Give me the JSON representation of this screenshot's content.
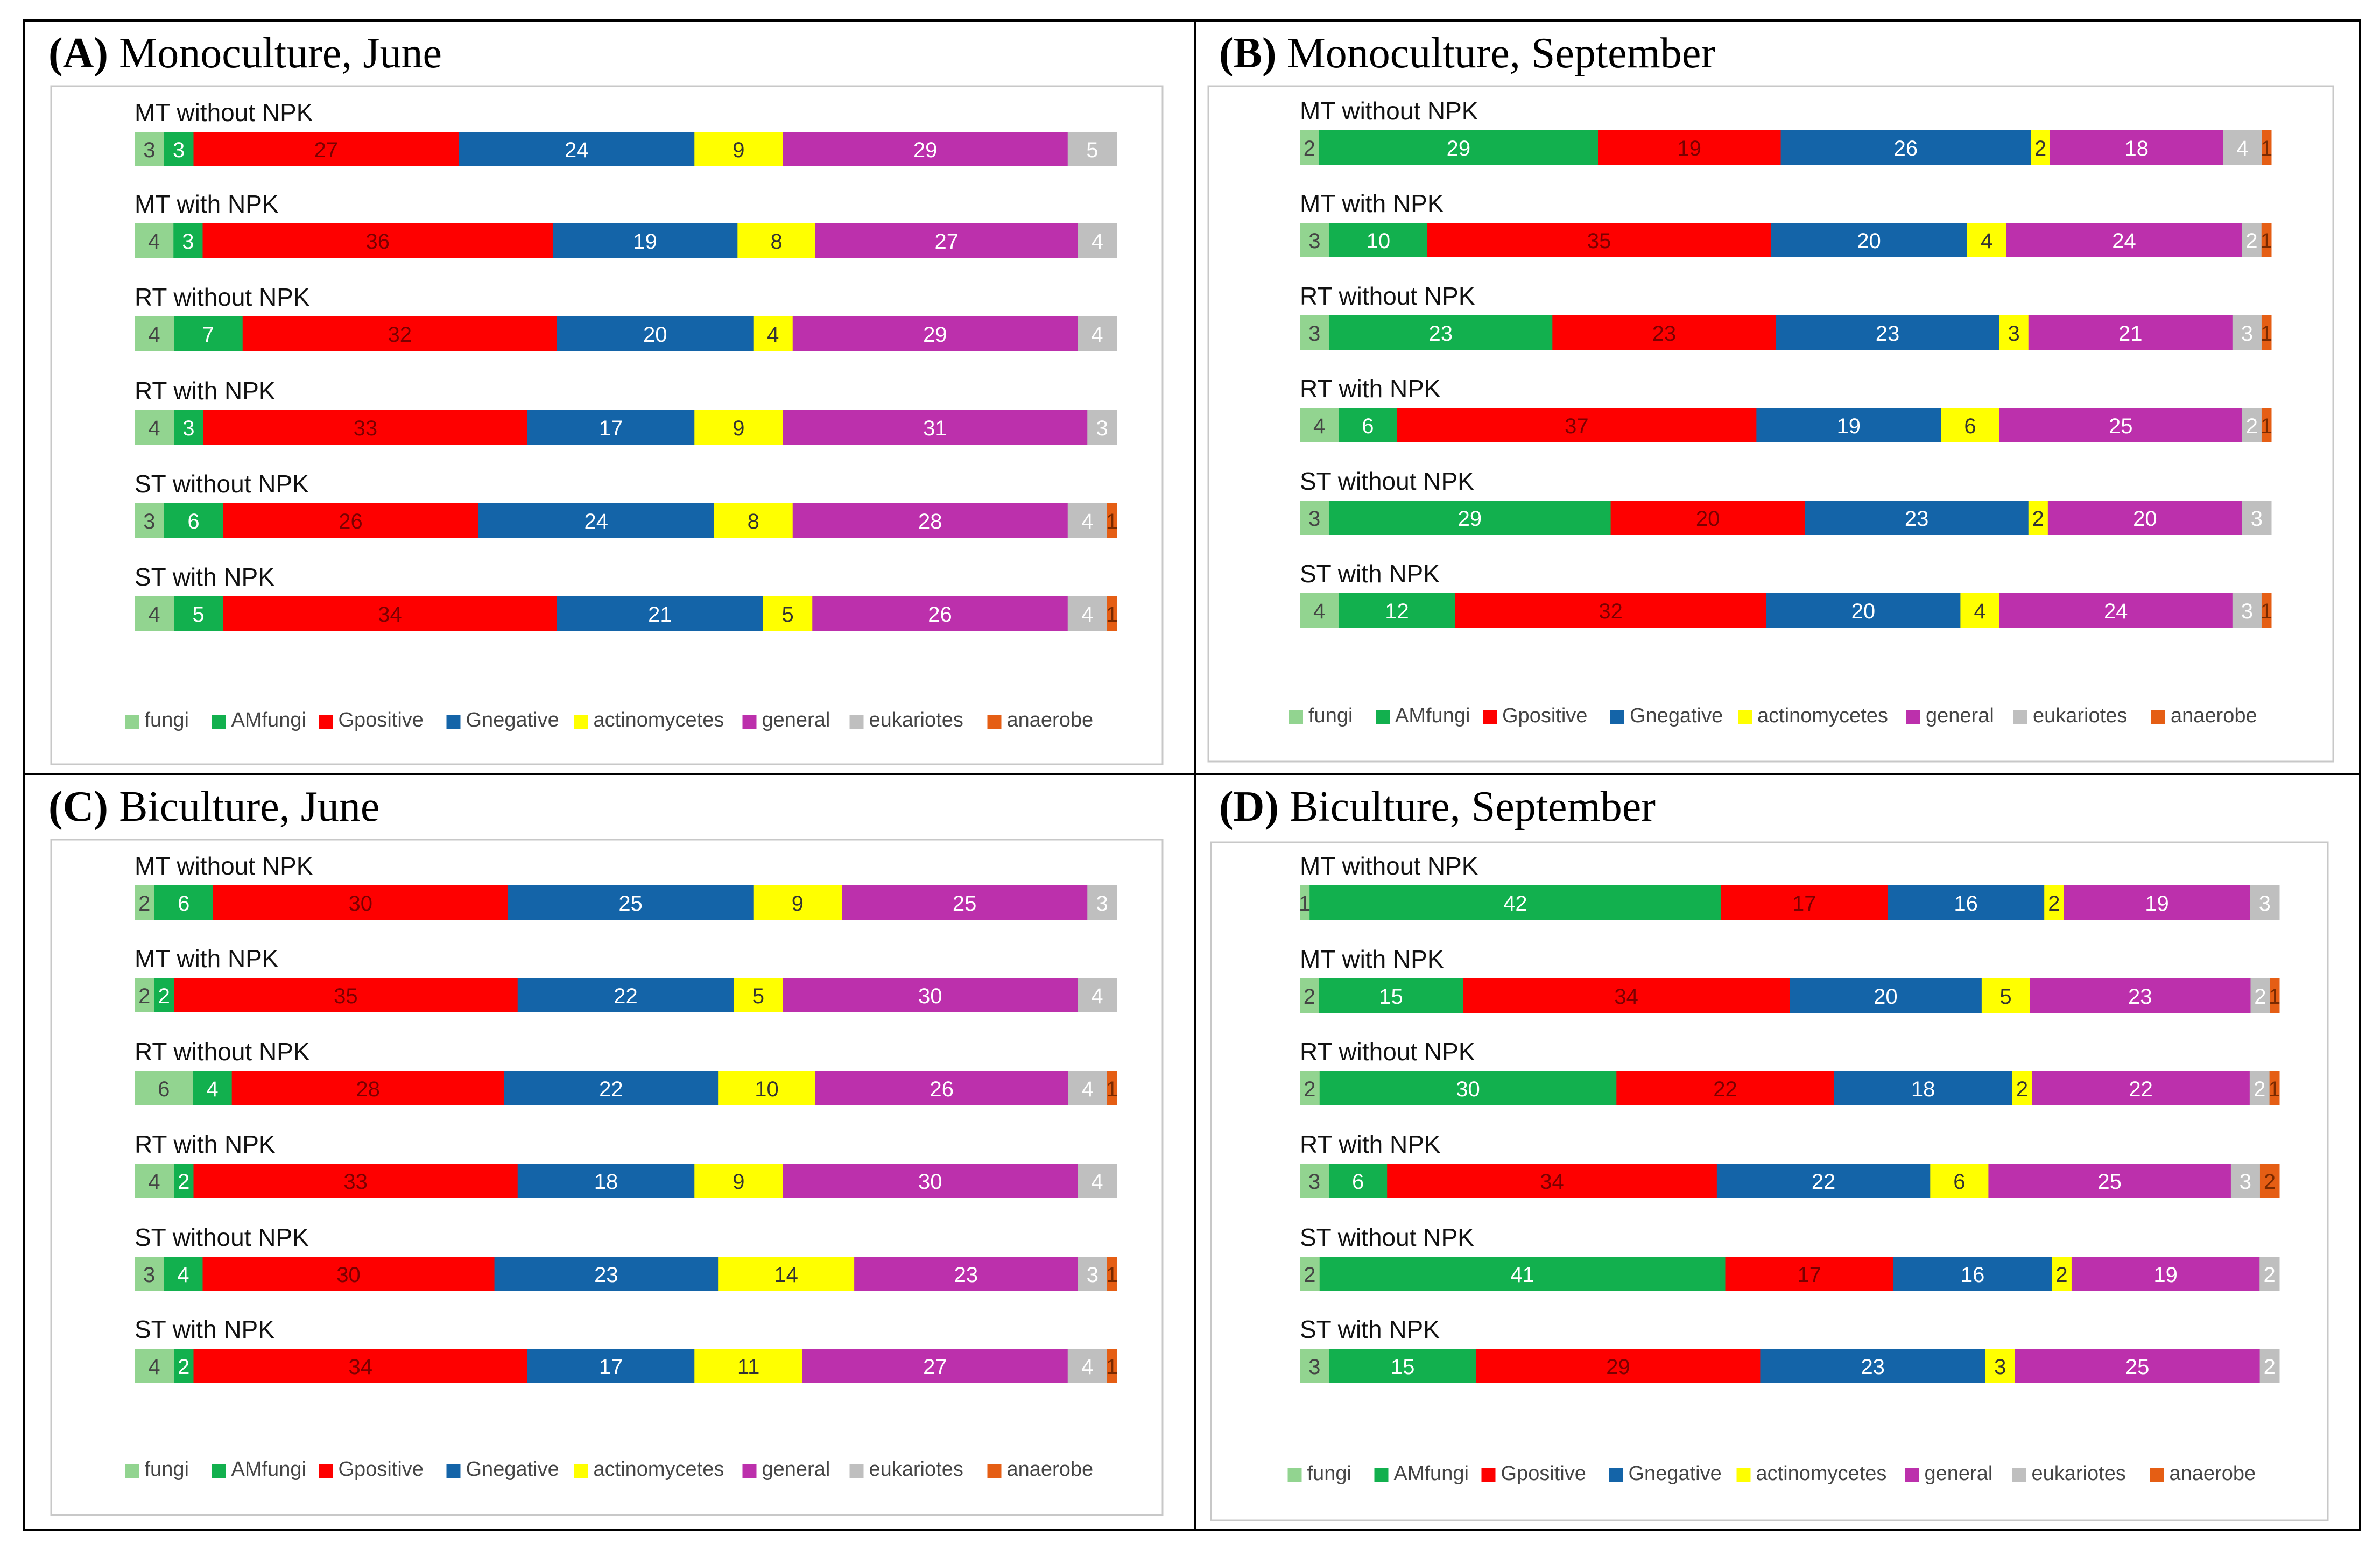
{
  "colors": {
    "fungi": "#92d490",
    "AMfungi": "#12b04e",
    "Gpositive": "#fe0000",
    "Gnegative": "#1464a8",
    "actinomycetes": "#ffff00",
    "general": "#bc30ac",
    "eukariotes": "#bfbfbf",
    "anaerobe": "#e55e14"
  },
  "label_colors": {
    "fungi": "#444444",
    "AMfungi": "#ffffff",
    "Gpositive": "#7a0000",
    "Gnegative": "#ffffff",
    "actinomycetes": "#333333",
    "general": "#ffffff",
    "eukariotes": "#ffffff",
    "anaerobe": "#7a2a00"
  },
  "chart_data": [
    {
      "type": "bar",
      "orientation": "horizontal",
      "stacked": true,
      "panel_letter": "(A)",
      "title": "Monoculture, June",
      "legend_position": "bottom",
      "categories": [
        "MT  without NPK",
        "MT  with NPK",
        "RT  without NPK",
        "RT  with NPK",
        "ST  without NPK",
        "ST  with NPK"
      ],
      "series": [
        {
          "name": "fungi",
          "values": [
            3,
            4,
            4,
            4,
            3,
            4
          ]
        },
        {
          "name": "AMfungi",
          "values": [
            3,
            3,
            7,
            3,
            6,
            5
          ]
        },
        {
          "name": "Gpositive",
          "values": [
            27,
            36,
            32,
            33,
            26,
            34
          ]
        },
        {
          "name": "Gnegative",
          "values": [
            24,
            19,
            20,
            17,
            24,
            21
          ]
        },
        {
          "name": "actinomycetes",
          "values": [
            9,
            8,
            4,
            9,
            8,
            5
          ]
        },
        {
          "name": "general",
          "values": [
            29,
            27,
            29,
            31,
            28,
            26
          ]
        },
        {
          "name": "eukariotes",
          "values": [
            5,
            4,
            4,
            3,
            4,
            4
          ]
        },
        {
          "name": "anaerobe",
          "values": [
            0,
            0,
            0,
            0,
            1,
            1
          ]
        }
      ]
    },
    {
      "type": "bar",
      "orientation": "horizontal",
      "stacked": true,
      "panel_letter": "(B)",
      "title": "Monoculture, September",
      "legend_position": "bottom",
      "categories": [
        "MT  without NPK",
        "MT  with NPK",
        "RT  without NPK",
        "RT  with NPK",
        "ST  without NPK",
        "ST  with NPK"
      ],
      "series": [
        {
          "name": "fungi",
          "values": [
            2,
            3,
            3,
            4,
            3,
            4
          ]
        },
        {
          "name": "AMfungi",
          "values": [
            29,
            10,
            23,
            6,
            29,
            12
          ]
        },
        {
          "name": "Gpositive",
          "values": [
            19,
            35,
            23,
            37,
            20,
            32
          ]
        },
        {
          "name": "Gnegative",
          "values": [
            26,
            20,
            23,
            19,
            23,
            20
          ]
        },
        {
          "name": "actinomycetes",
          "values": [
            2,
            4,
            3,
            6,
            2,
            4
          ]
        },
        {
          "name": "general",
          "values": [
            18,
            24,
            21,
            25,
            20,
            24
          ]
        },
        {
          "name": "eukariotes",
          "values": [
            4,
            2,
            3,
            2,
            3,
            3
          ]
        },
        {
          "name": "anaerobe",
          "values": [
            1,
            1,
            1,
            1,
            0,
            1
          ]
        }
      ]
    },
    {
      "type": "bar",
      "orientation": "horizontal",
      "stacked": true,
      "panel_letter": "(C)",
      "title": "Biculture, June",
      "legend_position": "bottom",
      "categories": [
        "MT  without NPK",
        "MT  with NPK",
        "RT  without NPK",
        "RT  with NPK",
        "ST  without NPK",
        "ST  with NPK"
      ],
      "series": [
        {
          "name": "fungi",
          "values": [
            2,
            2,
            6,
            4,
            3,
            4
          ]
        },
        {
          "name": "AMfungi",
          "values": [
            6,
            2,
            4,
            2,
            4,
            2
          ]
        },
        {
          "name": "Gpositive",
          "values": [
            30,
            35,
            28,
            33,
            30,
            34
          ]
        },
        {
          "name": "Gnegative",
          "values": [
            25,
            22,
            22,
            18,
            23,
            17
          ]
        },
        {
          "name": "actinomycetes",
          "values": [
            9,
            5,
            10,
            9,
            14,
            11
          ]
        },
        {
          "name": "general",
          "values": [
            25,
            30,
            26,
            30,
            23,
            27
          ]
        },
        {
          "name": "eukariotes",
          "values": [
            3,
            4,
            4,
            4,
            3,
            4
          ]
        },
        {
          "name": "anaerobe",
          "values": [
            0,
            0,
            1,
            0,
            1,
            1
          ]
        }
      ]
    },
    {
      "type": "bar",
      "orientation": "horizontal",
      "stacked": true,
      "panel_letter": "(D)",
      "title": "Biculture, September",
      "legend_position": "bottom",
      "categories": [
        "MT  without NPK",
        "MT  with NPK",
        "RT  without NPK",
        "RT  with NPK",
        "ST  without NPK",
        "ST  with NPK"
      ],
      "series": [
        {
          "name": "fungi",
          "values": [
            1,
            2,
            2,
            3,
            2,
            3
          ]
        },
        {
          "name": "AMfungi",
          "values": [
            42,
            15,
            30,
            6,
            41,
            15
          ]
        },
        {
          "name": "Gpositive",
          "values": [
            17,
            34,
            22,
            34,
            17,
            29
          ]
        },
        {
          "name": "Gnegative",
          "values": [
            16,
            20,
            18,
            22,
            16,
            23
          ]
        },
        {
          "name": "actinomycetes",
          "values": [
            2,
            5,
            2,
            6,
            2,
            3
          ]
        },
        {
          "name": "general",
          "values": [
            19,
            23,
            22,
            25,
            19,
            25
          ]
        },
        {
          "name": "eukariotes",
          "values": [
            3,
            2,
            2,
            3,
            2,
            2
          ]
        },
        {
          "name": "anaerobe",
          "values": [
            0,
            1,
            1,
            2,
            0,
            0
          ]
        }
      ]
    }
  ],
  "legend": [
    "fungi",
    "AMfungi",
    "Gpositive",
    "Gnegative",
    "actinomycetes",
    "general",
    "eukariotes",
    "anaerobe"
  ]
}
